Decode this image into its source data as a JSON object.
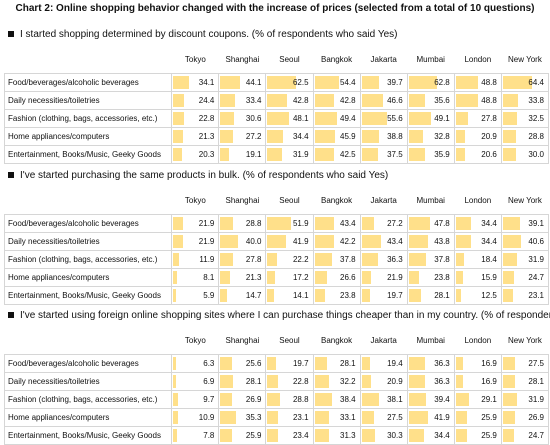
{
  "title": "Chart 2: Online shopping behavior changed with the increase of prices (selected from a total of 10 questions)",
  "colors": {
    "bar": "#ffe08a",
    "grid": "#d6d6d6"
  },
  "chart_data": [
    {
      "type": "table",
      "title": "I started shopping determined by discount coupons. (% of respondents who said Yes)",
      "columns": [
        "Tokyo",
        "Shanghai",
        "Seoul",
        "Bangkok",
        "Jakarta",
        "Mumbai",
        "London",
        "New York"
      ],
      "rows": [
        {
          "label": "Food/beverages/alcoholic beverages",
          "values": [
            34.1,
            44.1,
            62.5,
            54.4,
            39.7,
            62.8,
            48.8,
            64.4
          ]
        },
        {
          "label": "Daily necessities/toiletries",
          "values": [
            24.4,
            33.4,
            42.8,
            42.8,
            46.6,
            35.6,
            48.8,
            33.8
          ]
        },
        {
          "label": "Fashion (clothing, bags, accessories, etc.)",
          "values": [
            22.8,
            30.6,
            48.1,
            49.4,
            55.6,
            49.1,
            27.8,
            32.5
          ]
        },
        {
          "label": "Home appliances/computers",
          "values": [
            21.3,
            27.2,
            34.4,
            45.9,
            38.8,
            32.8,
            20.9,
            28.8
          ]
        },
        {
          "label": "Entertainment, Books/Music, Geeky Goods",
          "values": [
            20.3,
            19.1,
            31.9,
            42.5,
            37.5,
            35.9,
            20.6,
            30.0
          ]
        }
      ]
    },
    {
      "type": "table",
      "title": "I've started purchasing the same products in bulk. (% of respondents who said Yes)",
      "columns": [
        "Tokyo",
        "Shanghai",
        "Seoul",
        "Bangkok",
        "Jakarta",
        "Mumbai",
        "London",
        "New York"
      ],
      "rows": [
        {
          "label": "Food/beverages/alcoholic beverages",
          "values": [
            21.9,
            28.8,
            51.9,
            43.4,
            27.2,
            47.8,
            34.4,
            39.1
          ]
        },
        {
          "label": "Daily necessities/toiletries",
          "values": [
            21.9,
            40.0,
            41.9,
            42.2,
            43.4,
            43.8,
            34.4,
            40.6
          ]
        },
        {
          "label": "Fashion (clothing, bags, accessories, etc.)",
          "values": [
            11.9,
            27.8,
            22.2,
            37.8,
            36.3,
            37.8,
            18.4,
            31.9
          ]
        },
        {
          "label": "Home appliances/computers",
          "values": [
            8.1,
            21.3,
            17.2,
            26.6,
            21.9,
            23.8,
            15.9,
            24.7
          ]
        },
        {
          "label": "Entertainment, Books/Music, Geeky Goods",
          "values": [
            5.9,
            14.7,
            14.1,
            23.8,
            19.7,
            28.1,
            12.5,
            23.1
          ]
        }
      ]
    },
    {
      "type": "table",
      "title": "I've started using foreign online shopping sites where I can purchase things cheaper than in my country.  (% of respondents who said Yes)",
      "columns": [
        "Tokyo",
        "Shanghai",
        "Seoul",
        "Bangkok",
        "Jakarta",
        "Mumbai",
        "London",
        "New York"
      ],
      "rows": [
        {
          "label": "Food/beverages/alcoholic beverages",
          "values": [
            6.3,
            25.6,
            19.7,
            28.1,
            19.4,
            36.3,
            16.9,
            27.5
          ]
        },
        {
          "label": "Daily necessities/toiletries",
          "values": [
            6.9,
            28.1,
            22.8,
            32.2,
            20.9,
            36.3,
            16.9,
            28.1
          ]
        },
        {
          "label": "Fashion (clothing, bags, accessories, etc.)",
          "values": [
            9.7,
            26.9,
            28.8,
            38.4,
            38.1,
            39.4,
            29.1,
            31.9
          ]
        },
        {
          "label": "Home appliances/computers",
          "values": [
            10.9,
            35.3,
            23.1,
            33.1,
            27.5,
            41.9,
            25.9,
            26.9
          ]
        },
        {
          "label": "Entertainment, Books/Music, Geeky Goods",
          "values": [
            7.8,
            25.9,
            23.4,
            31.3,
            30.3,
            34.4,
            25.9,
            24.7
          ]
        }
      ]
    }
  ]
}
